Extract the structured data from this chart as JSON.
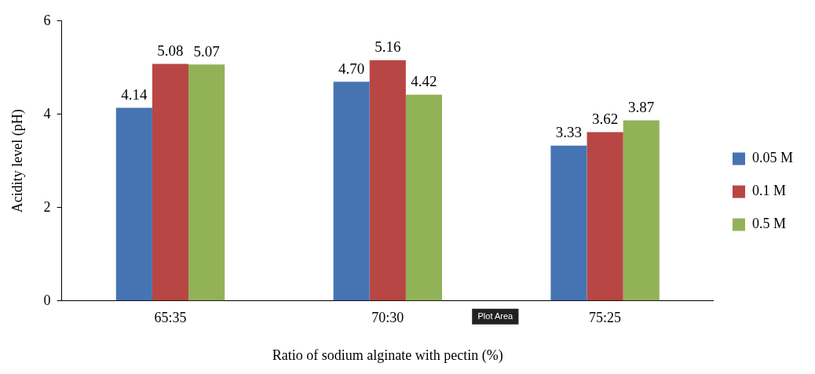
{
  "chart_data": {
    "type": "bar",
    "xlabel": "Ratio of sodium alginate with pectin (%)",
    "ylabel": "Acidity level (pH)",
    "categories": [
      "65:35",
      "70:30",
      "75:25"
    ],
    "series": [
      {
        "name": "0.05 M",
        "color": "#4674b2",
        "values": [
          4.14,
          4.7,
          3.33
        ],
        "value_labels": [
          "4.14",
          "4.70",
          "3.33"
        ]
      },
      {
        "name": "0.1 M",
        "color": "#b84644",
        "values": [
          5.08,
          5.16,
          3.62
        ],
        "value_labels": [
          "5.08",
          "5.16",
          "3.62"
        ]
      },
      {
        "name": "0.5 M",
        "color": "#92b258",
        "values": [
          5.07,
          4.42,
          3.87
        ],
        "value_labels": [
          "5.07",
          "4.42",
          "3.87"
        ]
      }
    ],
    "ylim": [
      0,
      6
    ],
    "yticks": [
      0,
      2,
      4,
      6
    ],
    "grid": false,
    "legend": "right",
    "annotations": [
      "Plot Area"
    ]
  }
}
